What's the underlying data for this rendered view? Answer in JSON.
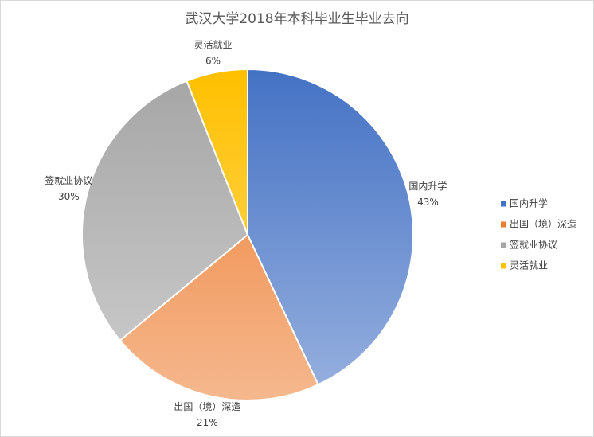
{
  "chart_data": {
    "type": "pie",
    "title": "武汉大学2018年本科毕业生毕业去向",
    "categories": [
      "国内升学",
      "出国（境）深造",
      "签就业协议",
      "灵活就业"
    ],
    "values": [
      43,
      21,
      30,
      6
    ],
    "value_labels": [
      "43%",
      "21%",
      "30%",
      "6%"
    ],
    "colors": [
      "#4472c4",
      "#ed7d31",
      "#a5a5a5",
      "#ffc000"
    ],
    "legend": "right"
  }
}
